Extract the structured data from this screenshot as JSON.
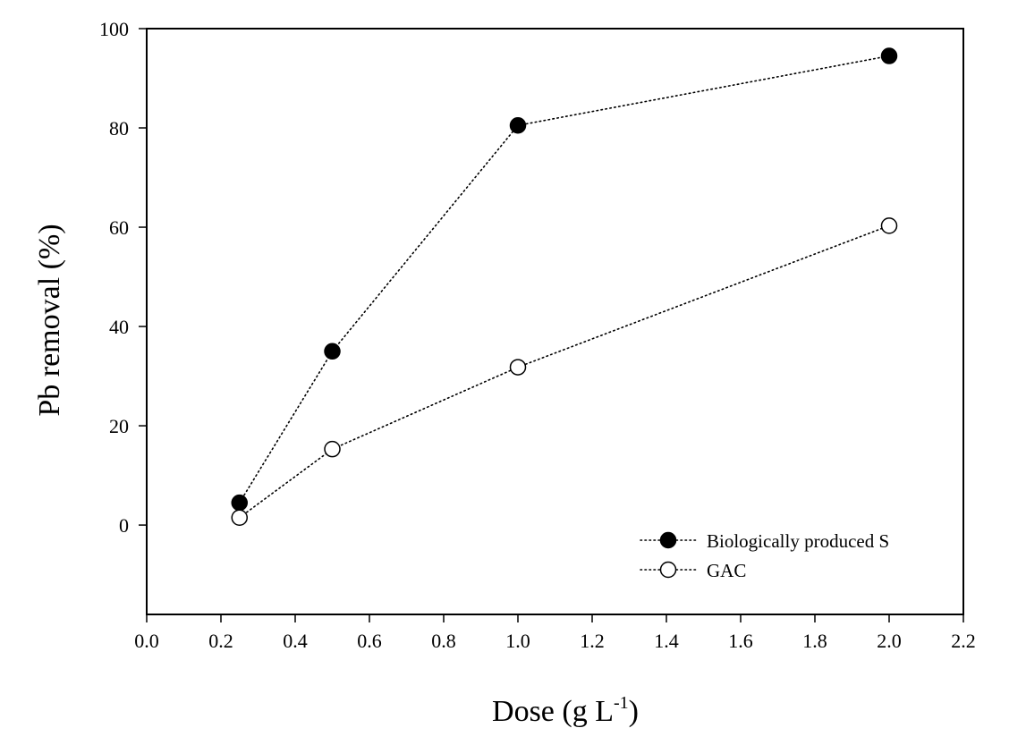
{
  "chart_data": {
    "type": "scatter",
    "xlabel": "Dose (g L",
    "xlabel_sup": "-1",
    "xlabel_close": ")",
    "ylabel": "Pb removal (%)",
    "xlim": [
      0.0,
      2.2
    ],
    "ylim": [
      -18,
      100
    ],
    "x_ticks": [
      "0.0",
      "0.2",
      "0.4",
      "0.6",
      "0.8",
      "1.0",
      "1.2",
      "1.4",
      "1.6",
      "1.8",
      "2.0",
      "2.2"
    ],
    "y_ticks": [
      "0",
      "20",
      "40",
      "60",
      "80",
      "100"
    ],
    "grid": false,
    "legend_position": "bottom-right",
    "series": [
      {
        "name": "Biologically produced S",
        "marker": "filled-circle",
        "line": "dotted",
        "color": "#000000",
        "x": [
          0.25,
          0.5,
          1.0,
          2.0
        ],
        "y": [
          4.5,
          35,
          80.5,
          94.5
        ]
      },
      {
        "name": "GAC",
        "marker": "open-circle",
        "line": "dotted",
        "color": "#000000",
        "x": [
          0.25,
          0.5,
          1.0,
          2.0
        ],
        "y": [
          1.5,
          15.3,
          31.8,
          60.3
        ]
      }
    ]
  }
}
